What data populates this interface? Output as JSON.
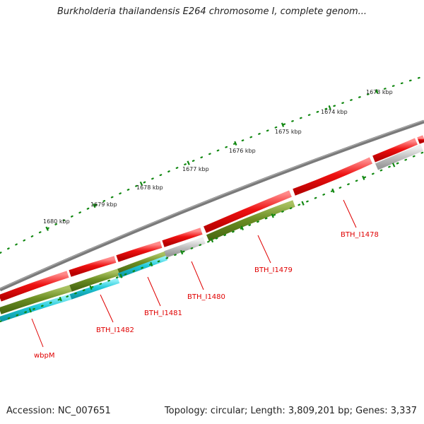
{
  "title": "Burkholderia thailandensis E264 chromosome I, complete genom...",
  "footer": {
    "accession": "Accession: NC_007651",
    "summary": "Topology: circular; Length: 3,809,201 bp; Genes: 3,337"
  },
  "ruler": {
    "ticks": [
      "1673 kbp",
      "1674 kbp",
      "1675 kbp",
      "1676 kbp",
      "1677 kbp",
      "1678 kbp",
      "1679 kbp",
      "1680 kbp"
    ]
  },
  "gene_labels": [
    "BTH_I1478",
    "BTH_I1479",
    "BTH_I1480",
    "BTH_I1481",
    "BTH_I1482",
    "wbpM"
  ],
  "colors": {
    "red": "#ee1111",
    "green": "#6b8e23",
    "cyan": "#20c8d8",
    "gray": "#bdbdbd",
    "backbone": "#7a7a7a",
    "ruler": "#118811",
    "label": "#e00000"
  }
}
